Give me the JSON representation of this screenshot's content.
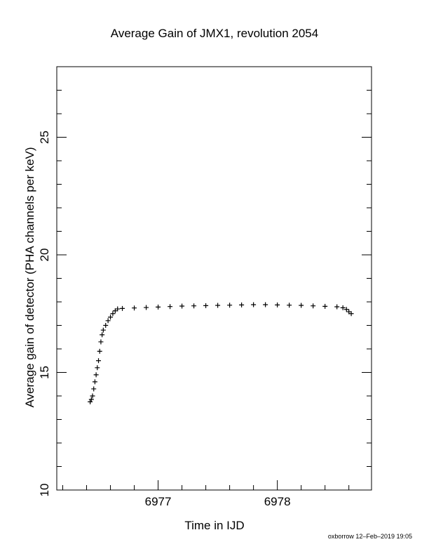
{
  "chart_data": {
    "type": "scatter",
    "title": "Average Gain of JMX1, revolution 2054",
    "x_label": "Time in IJD",
    "y_label": "Average gain of detector (PHA channels per keV)",
    "footer": "oxborrow 12–Feb–2019 19:05",
    "xlim": [
      6976.15,
      6978.79
    ],
    "ylim": [
      10,
      28
    ],
    "xticks": [
      6977,
      6978
    ],
    "yticks": [
      10,
      15,
      20,
      25
    ],
    "xminorticks": [
      6976.2,
      6976.4,
      6976.6,
      6976.8,
      6977.2,
      6977.4,
      6977.6,
      6977.8,
      6978.2,
      6978.4,
      6978.6
    ],
    "yminorticks": [
      11,
      12,
      13,
      14,
      16,
      17,
      18,
      19,
      21,
      22,
      23,
      24,
      26,
      27
    ],
    "marker": "+",
    "color": "#000000",
    "x": [
      6976.43,
      6976.44,
      6976.45,
      6976.46,
      6976.47,
      6976.48,
      6976.49,
      6976.5,
      6976.51,
      6976.52,
      6976.53,
      6976.54,
      6976.56,
      6976.58,
      6976.6,
      6976.62,
      6976.64,
      6976.66,
      6976.7,
      6976.8,
      6976.9,
      6977.0,
      6977.1,
      6977.2,
      6977.3,
      6977.4,
      6977.5,
      6977.6,
      6977.7,
      6977.8,
      6977.9,
      6978.0,
      6978.1,
      6978.2,
      6978.3,
      6978.4,
      6978.5,
      6978.55,
      6978.58,
      6978.6,
      6978.62
    ],
    "values": [
      13.75,
      13.85,
      14.0,
      14.3,
      14.6,
      14.9,
      15.2,
      15.5,
      15.9,
      16.3,
      16.6,
      16.8,
      17.0,
      17.2,
      17.35,
      17.5,
      17.62,
      17.7,
      17.72,
      17.74,
      17.76,
      17.78,
      17.8,
      17.82,
      17.83,
      17.84,
      17.85,
      17.86,
      17.87,
      17.88,
      17.88,
      17.87,
      17.86,
      17.85,
      17.83,
      17.81,
      17.79,
      17.75,
      17.68,
      17.58,
      17.5
    ]
  }
}
